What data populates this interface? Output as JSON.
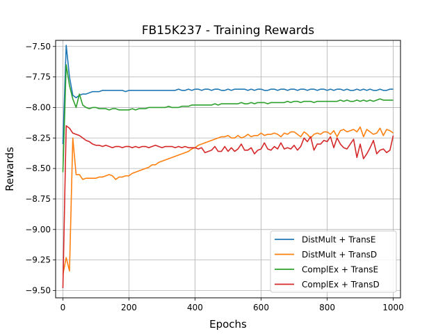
{
  "chart_data": {
    "type": "line",
    "title": "FB15K237 - Training Rewards",
    "xlabel": "Epochs",
    "ylabel": "Rewards",
    "xlim": [
      -22,
      1022
    ],
    "ylim": [
      -9.56,
      -7.45
    ],
    "xticks": [
      0,
      200,
      400,
      600,
      800,
      1000
    ],
    "yticks": [
      -9.5,
      -9.25,
      -9.0,
      -8.75,
      -8.5,
      -8.25,
      -8.0,
      -7.75,
      -7.5
    ],
    "ytick_labels": [
      "−9.50",
      "−9.25",
      "−9.00",
      "−8.75",
      "−8.50",
      "−8.25",
      "−8.00",
      "−7.75",
      "−7.50"
    ],
    "xtick_labels": [
      "0",
      "200",
      "400",
      "600",
      "800",
      "1000"
    ],
    "grid": true,
    "legend_position": "lower-right",
    "x": [
      0,
      10,
      20,
      30,
      40,
      50,
      60,
      70,
      80,
      90,
      100,
      110,
      120,
      130,
      140,
      150,
      160,
      170,
      180,
      190,
      200,
      210,
      220,
      230,
      240,
      250,
      260,
      270,
      280,
      290,
      300,
      310,
      320,
      330,
      340,
      350,
      360,
      370,
      380,
      390,
      400,
      410,
      420,
      430,
      440,
      450,
      460,
      470,
      480,
      490,
      500,
      510,
      520,
      530,
      540,
      550,
      560,
      570,
      580,
      590,
      600,
      610,
      620,
      630,
      640,
      650,
      660,
      670,
      680,
      690,
      700,
      710,
      720,
      730,
      740,
      750,
      760,
      770,
      780,
      790,
      800,
      810,
      820,
      830,
      840,
      850,
      860,
      870,
      880,
      890,
      900,
      910,
      920,
      930,
      940,
      950,
      960,
      970,
      980,
      990,
      1000
    ],
    "series": [
      {
        "name": "DistMult + TransE",
        "color": "#1f77b4",
        "values": [
          -8.3,
          -7.49,
          -7.75,
          -7.9,
          -7.92,
          -7.9,
          -7.89,
          -7.89,
          -7.88,
          -7.87,
          -7.87,
          -7.87,
          -7.86,
          -7.86,
          -7.86,
          -7.86,
          -7.86,
          -7.86,
          -7.86,
          -7.87,
          -7.86,
          -7.86,
          -7.86,
          -7.86,
          -7.86,
          -7.86,
          -7.86,
          -7.86,
          -7.86,
          -7.86,
          -7.86,
          -7.86,
          -7.86,
          -7.86,
          -7.86,
          -7.85,
          -7.86,
          -7.86,
          -7.85,
          -7.86,
          -7.85,
          -7.85,
          -7.86,
          -7.85,
          -7.85,
          -7.86,
          -7.85,
          -7.85,
          -7.86,
          -7.86,
          -7.85,
          -7.86,
          -7.85,
          -7.85,
          -7.85,
          -7.85,
          -7.86,
          -7.85,
          -7.86,
          -7.85,
          -7.85,
          -7.86,
          -7.86,
          -7.85,
          -7.85,
          -7.86,
          -7.85,
          -7.85,
          -7.86,
          -7.85,
          -7.85,
          -7.86,
          -7.85,
          -7.85,
          -7.86,
          -7.85,
          -7.85,
          -7.86,
          -7.85,
          -7.85,
          -7.86,
          -7.85,
          -7.86,
          -7.85,
          -7.85,
          -7.86,
          -7.85,
          -7.86,
          -7.86,
          -7.85,
          -7.86,
          -7.85,
          -7.86,
          -7.85,
          -7.86,
          -7.86,
          -7.85,
          -7.86,
          -7.86,
          -7.85,
          -7.85
        ]
      },
      {
        "name": "DistMult + TransD",
        "color": "#ff7f0e",
        "values": [
          -9.37,
          -9.23,
          -9.34,
          -8.25,
          -8.55,
          -8.55,
          -8.59,
          -8.58,
          -8.58,
          -8.58,
          -8.58,
          -8.57,
          -8.57,
          -8.56,
          -8.55,
          -8.56,
          -8.59,
          -8.57,
          -8.57,
          -8.56,
          -8.56,
          -8.54,
          -8.53,
          -8.52,
          -8.51,
          -8.5,
          -8.49,
          -8.47,
          -8.47,
          -8.45,
          -8.44,
          -8.43,
          -8.42,
          -8.41,
          -8.4,
          -8.39,
          -8.38,
          -8.37,
          -8.36,
          -8.34,
          -8.33,
          -8.31,
          -8.3,
          -8.29,
          -8.28,
          -8.27,
          -8.26,
          -8.25,
          -8.24,
          -8.24,
          -8.23,
          -8.25,
          -8.25,
          -8.23,
          -8.25,
          -8.24,
          -8.22,
          -8.24,
          -8.23,
          -8.23,
          -8.21,
          -8.23,
          -8.22,
          -8.22,
          -8.21,
          -8.22,
          -8.24,
          -8.21,
          -8.22,
          -8.2,
          -8.2,
          -8.22,
          -8.24,
          -8.2,
          -8.22,
          -8.25,
          -8.22,
          -8.21,
          -8.22,
          -8.2,
          -8.2,
          -8.22,
          -8.19,
          -8.24,
          -8.19,
          -8.18,
          -8.2,
          -8.19,
          -8.18,
          -8.2,
          -8.16,
          -8.24,
          -8.18,
          -8.2,
          -8.22,
          -8.21,
          -8.17,
          -8.23,
          -8.18,
          -8.19,
          -8.21
        ]
      },
      {
        "name": "ComplEx + TransE",
        "color": "#2ca02c",
        "values": [
          -8.53,
          -7.65,
          -7.82,
          -7.93,
          -8.0,
          -7.89,
          -7.98,
          -8.0,
          -8.01,
          -8.0,
          -8.0,
          -8.01,
          -8.01,
          -8.01,
          -8.02,
          -8.01,
          -8.01,
          -8.02,
          -8.02,
          -8.02,
          -8.02,
          -8.01,
          -8.02,
          -8.01,
          -8.01,
          -8.01,
          -8.0,
          -8.0,
          -8.0,
          -8.0,
          -8.0,
          -8.0,
          -7.99,
          -8.0,
          -8.0,
          -8.0,
          -7.99,
          -7.99,
          -7.99,
          -7.98,
          -7.98,
          -7.98,
          -7.98,
          -7.98,
          -7.98,
          -7.98,
          -7.97,
          -7.98,
          -7.97,
          -7.97,
          -7.97,
          -7.97,
          -7.97,
          -7.97,
          -7.96,
          -7.97,
          -7.97,
          -7.96,
          -7.97,
          -7.96,
          -7.96,
          -7.96,
          -7.97,
          -7.96,
          -7.96,
          -7.96,
          -7.96,
          -7.96,
          -7.95,
          -7.96,
          -7.95,
          -7.95,
          -7.96,
          -7.95,
          -7.95,
          -7.95,
          -7.96,
          -7.95,
          -7.95,
          -7.95,
          -7.95,
          -7.95,
          -7.95,
          -7.95,
          -7.94,
          -7.95,
          -7.94,
          -7.95,
          -7.95,
          -7.94,
          -7.95,
          -7.94,
          -7.95,
          -7.94,
          -7.95,
          -7.94,
          -7.93,
          -7.94,
          -7.94,
          -7.94,
          -7.94
        ]
      },
      {
        "name": "ComplEx + TransD",
        "color": "#d62728",
        "values": [
          -9.48,
          -8.15,
          -8.17,
          -8.21,
          -8.22,
          -8.23,
          -8.25,
          -8.27,
          -8.28,
          -8.3,
          -8.31,
          -8.31,
          -8.32,
          -8.31,
          -8.32,
          -8.33,
          -8.32,
          -8.32,
          -8.33,
          -8.32,
          -8.32,
          -8.33,
          -8.32,
          -8.33,
          -8.32,
          -8.32,
          -8.33,
          -8.32,
          -8.31,
          -8.32,
          -8.33,
          -8.32,
          -8.32,
          -8.32,
          -8.33,
          -8.32,
          -8.33,
          -8.32,
          -8.33,
          -8.33,
          -8.33,
          -8.34,
          -8.33,
          -8.37,
          -8.36,
          -8.35,
          -8.32,
          -8.36,
          -8.36,
          -8.32,
          -8.36,
          -8.33,
          -8.36,
          -8.34,
          -8.3,
          -8.35,
          -8.35,
          -8.33,
          -8.38,
          -8.35,
          -8.34,
          -8.29,
          -8.34,
          -8.35,
          -8.32,
          -8.34,
          -8.29,
          -8.34,
          -8.33,
          -8.34,
          -8.31,
          -8.35,
          -8.32,
          -8.25,
          -8.28,
          -8.24,
          -8.35,
          -8.3,
          -8.3,
          -8.27,
          -8.28,
          -8.24,
          -8.33,
          -8.25,
          -8.3,
          -8.33,
          -8.34,
          -8.3,
          -8.26,
          -8.41,
          -8.3,
          -8.42,
          -8.38,
          -8.33,
          -8.27,
          -8.38,
          -8.35,
          -8.34,
          -8.37,
          -8.35,
          -8.23
        ]
      }
    ]
  }
}
